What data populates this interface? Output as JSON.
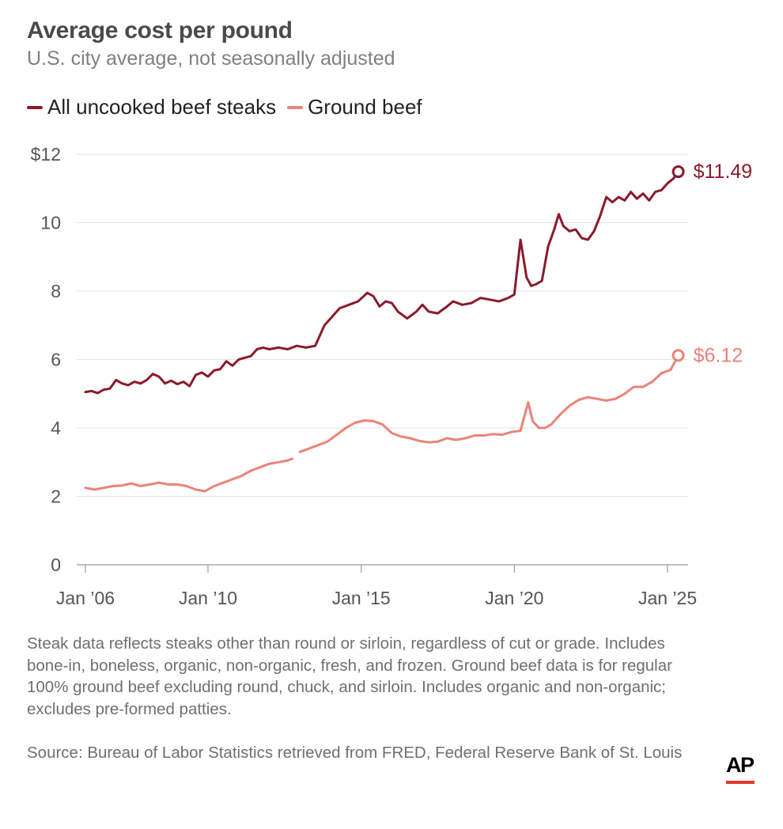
{
  "header": {
    "title": "Average cost per pound",
    "subtitle": "U.S. city average, not seasonally adjusted"
  },
  "colors": {
    "steak": "#8b1a2b",
    "ground": "#ea8378",
    "grid": "#e3e3e3",
    "axis_text": "#555555"
  },
  "chart_data": {
    "type": "line",
    "title": "Average cost per pound",
    "subtitle": "U.S. city average, not seasonally adjusted",
    "xlabel": "",
    "ylabel": "",
    "ylim": [
      0,
      12
    ],
    "xlim": [
      2006.0,
      2025.67
    ],
    "y_ticks": [
      {
        "value": 0,
        "label": "0"
      },
      {
        "value": 2,
        "label": "2"
      },
      {
        "value": 4,
        "label": "4"
      },
      {
        "value": 6,
        "label": "6"
      },
      {
        "value": 8,
        "label": "8"
      },
      {
        "value": 10,
        "label": "10"
      },
      {
        "value": 12,
        "label": "$12"
      }
    ],
    "x_ticks": [
      {
        "value": 2006,
        "label": "Jan ’06"
      },
      {
        "value": 2010,
        "label": "Jan ’10"
      },
      {
        "value": 2015,
        "label": "Jan ’15"
      },
      {
        "value": 2020,
        "label": "Jan ’20"
      },
      {
        "value": 2025,
        "label": "Jan ’25"
      }
    ],
    "grid": true,
    "legend_position": "top-left",
    "series": [
      {
        "name": "All uncooked beef steaks",
        "color": "#8b1a2b",
        "end_label": "$11.49",
        "x": [
          2006.0,
          2006.2,
          2006.4,
          2006.6,
          2006.8,
          2007.0,
          2007.2,
          2007.4,
          2007.6,
          2007.8,
          2008.0,
          2008.2,
          2008.4,
          2008.6,
          2008.8,
          2009.0,
          2009.2,
          2009.4,
          2009.6,
          2009.8,
          2010.0,
          2010.2,
          2010.4,
          2010.6,
          2010.8,
          2011.0,
          2011.2,
          2011.4,
          2011.6,
          2011.8,
          2012.0,
          2012.3,
          2012.6,
          2012.9,
          2013.2,
          2013.5,
          2013.8,
          2014.0,
          2014.3,
          2014.6,
          2014.9,
          2015.2,
          2015.4,
          2015.6,
          2015.8,
          2016.0,
          2016.2,
          2016.5,
          2016.8,
          2017.0,
          2017.2,
          2017.5,
          2017.8,
          2018.0,
          2018.3,
          2018.6,
          2018.9,
          2019.2,
          2019.5,
          2019.8,
          2020.0,
          2020.2,
          2020.4,
          2020.55,
          2020.7,
          2020.9,
          2021.1,
          2021.3,
          2021.45,
          2021.6,
          2021.8,
          2022.0,
          2022.2,
          2022.4,
          2022.6,
          2022.8,
          2023.0,
          2023.2,
          2023.4,
          2023.6,
          2023.8,
          2024.0,
          2024.2,
          2024.4,
          2024.6,
          2024.8,
          2025.0,
          2025.2,
          2025.35
        ],
        "values": [
          5.05,
          5.08,
          5.02,
          5.12,
          5.15,
          5.4,
          5.3,
          5.25,
          5.35,
          5.3,
          5.4,
          5.58,
          5.5,
          5.3,
          5.38,
          5.28,
          5.35,
          5.22,
          5.55,
          5.62,
          5.5,
          5.68,
          5.72,
          5.95,
          5.82,
          6.0,
          6.05,
          6.1,
          6.3,
          6.35,
          6.3,
          6.35,
          6.3,
          6.4,
          6.35,
          6.4,
          7.0,
          7.2,
          7.5,
          7.6,
          7.7,
          7.95,
          7.85,
          7.55,
          7.7,
          7.65,
          7.4,
          7.2,
          7.4,
          7.6,
          7.4,
          7.35,
          7.55,
          7.7,
          7.6,
          7.65,
          7.8,
          7.75,
          7.7,
          7.8,
          7.9,
          9.5,
          8.4,
          8.15,
          8.2,
          8.3,
          9.3,
          9.8,
          10.25,
          9.9,
          9.75,
          9.8,
          9.55,
          9.5,
          9.75,
          10.2,
          10.75,
          10.6,
          10.75,
          10.65,
          10.9,
          10.7,
          10.85,
          10.65,
          10.9,
          10.95,
          11.15,
          11.3,
          11.49
        ]
      },
      {
        "name": "Ground beef",
        "color": "#ea8378",
        "end_label": "$6.12",
        "x": [
          2006.0,
          2006.3,
          2006.6,
          2006.9,
          2007.2,
          2007.5,
          2007.8,
          2008.1,
          2008.4,
          2008.7,
          2009.0,
          2009.3,
          2009.6,
          2009.9,
          2010.2,
          2010.5,
          2010.8,
          2011.1,
          2011.4,
          2011.7,
          2012.0,
          2012.3,
          2012.6,
          2012.75,
          null,
          2013.0,
          2013.3,
          2013.6,
          2013.9,
          2014.2,
          2014.5,
          2014.8,
          2015.1,
          2015.4,
          2015.7,
          2016.0,
          2016.3,
          2016.6,
          2016.9,
          2017.2,
          2017.5,
          2017.8,
          2018.1,
          2018.4,
          2018.7,
          2019.0,
          2019.3,
          2019.6,
          2019.9,
          2020.2,
          2020.45,
          2020.6,
          2020.8,
          2021.0,
          2021.2,
          2021.5,
          2021.8,
          2022.1,
          2022.4,
          2022.7,
          2023.0,
          2023.3,
          2023.6,
          2023.9,
          2024.2,
          2024.5,
          2024.8,
          2025.1,
          2025.35
        ],
        "values": [
          2.25,
          2.2,
          2.25,
          2.3,
          2.32,
          2.38,
          2.3,
          2.35,
          2.4,
          2.35,
          2.35,
          2.3,
          2.2,
          2.15,
          2.3,
          2.4,
          2.5,
          2.6,
          2.75,
          2.85,
          2.95,
          3.0,
          3.05,
          3.1,
          null,
          3.3,
          3.4,
          3.5,
          3.6,
          3.8,
          4.0,
          4.15,
          4.22,
          4.2,
          4.1,
          3.85,
          3.75,
          3.7,
          3.62,
          3.58,
          3.6,
          3.7,
          3.65,
          3.7,
          3.78,
          3.78,
          3.82,
          3.8,
          3.88,
          3.92,
          4.75,
          4.2,
          4.0,
          4.0,
          4.1,
          4.4,
          4.65,
          4.82,
          4.9,
          4.85,
          4.8,
          4.85,
          5.0,
          5.2,
          5.2,
          5.35,
          5.6,
          5.7,
          6.12
        ]
      }
    ]
  },
  "notes": {
    "description": "Steak data reflects steaks other than round or sirloin, regardless of cut or grade. Includes bone-in, boneless, organic, non-organic, fresh, and frozen. Ground beef data is for regular 100% ground beef excluding round, chuck, and sirloin. Includes organic and non-organic; excludes pre-formed patties.",
    "source": "Source: Bureau of Labor Statistics retrieved from FRED, Federal Reserve Bank of St. Louis"
  },
  "branding": {
    "logo_text": "AP"
  }
}
